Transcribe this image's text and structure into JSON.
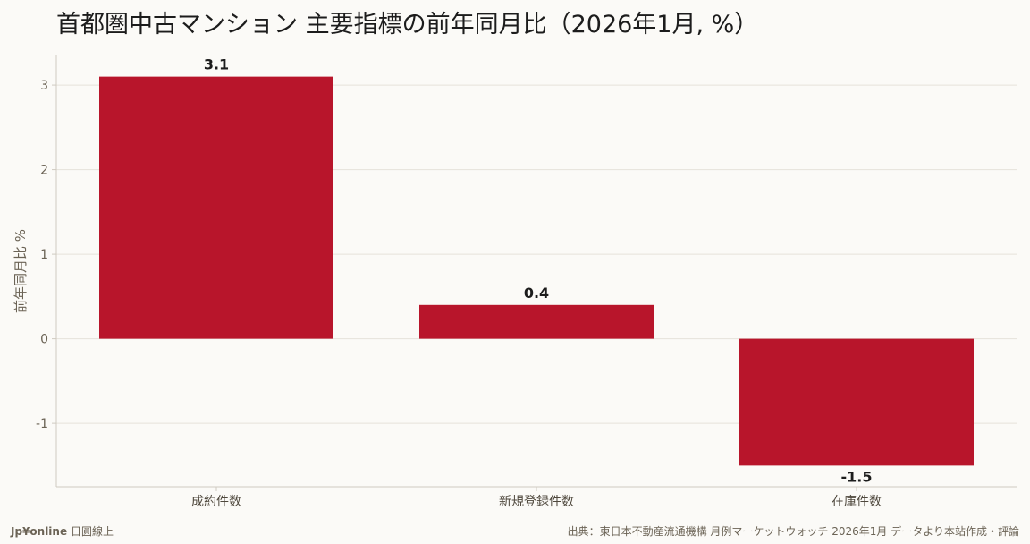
{
  "title": "首都圏中古マンション 主要指標の前年同月比（2026年1月, %）",
  "footer": {
    "brand": "Jp¥online",
    "brand_sub": "日圓線上",
    "source": "出典：東日本不動産流通機構 月例マーケットウォッチ 2026年1月 データより本站作成・評論"
  },
  "colors": {
    "bar": "#b8152b",
    "grid": "#e6e2da",
    "axis": "#cfcac0",
    "background": "#fbfaf7"
  },
  "chart_data": {
    "type": "bar",
    "categories": [
      "成約件数",
      "新規登録件数",
      "在庫件数"
    ],
    "values": [
      3.1,
      0.4,
      -1.5
    ],
    "data_labels": [
      "3.1",
      "0.4",
      "-1.5"
    ],
    "ylabel": "前年同月比 %",
    "ylim": [
      -1.75,
      3.35
    ],
    "yticks": [
      -1,
      0,
      1,
      2,
      3
    ],
    "grid": true,
    "legend": "none"
  }
}
